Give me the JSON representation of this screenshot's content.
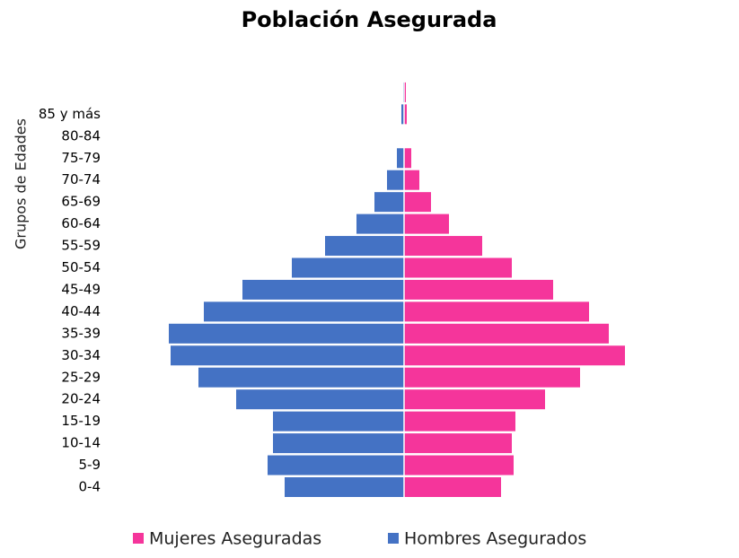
{
  "chart_data": {
    "type": "pyramid",
    "title": "Población Asegurada",
    "y_label": "Grupos de Edades",
    "categories": [
      "0-4",
      "5-9",
      "10-14",
      "15-19",
      "20-24",
      "25-29",
      "30-34",
      "35-39",
      "40-44",
      "45-49",
      "50-54",
      "55-59",
      "60-64",
      "65-69",
      "70-74",
      "75-79",
      "80-84",
      "85 y más",
      null
    ],
    "series": [
      {
        "name": "Mujeres Aseguradas",
        "color": "#f5359b",
        "side": "right",
        "values": [
          108,
          122,
          120,
          124,
          157,
          196,
          246,
          228,
          206,
          166,
          120,
          87,
          50,
          30,
          17,
          8,
          0.5,
          3,
          2
        ]
      },
      {
        "name": "Hombres Asegurados",
        "color": "#4472c4",
        "side": "left",
        "values": [
          133,
          152,
          146,
          146,
          187,
          229,
          260,
          262,
          223,
          180,
          125,
          88,
          53,
          33,
          19,
          8,
          0.5,
          3,
          1
        ]
      }
    ],
    "legend": "bottom"
  }
}
